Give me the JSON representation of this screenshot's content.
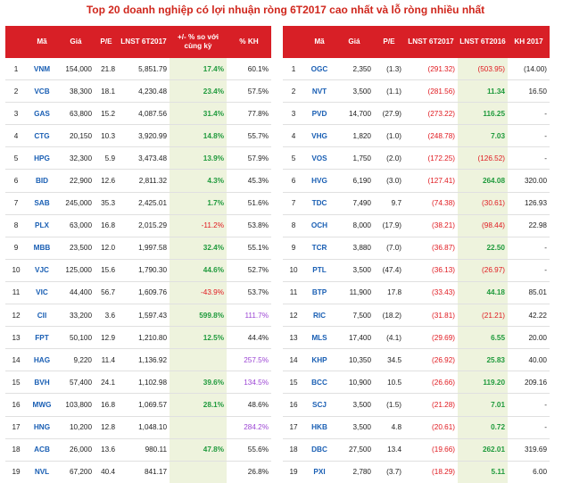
{
  "title": "Top 20 doanh nghiệp có lợi nhuận ròng 6T2017 cao nhất và lỗ ròng nhiều nhất",
  "colors": {
    "header_bg": "#d81f26",
    "ticker": "#1a5fb4",
    "negative": "#e0191f",
    "positive_growth": "#1f9a3c",
    "plan_over_100": "#9c46d4",
    "shade": "#eef3dd"
  },
  "left_table": {
    "headers": [
      "",
      "Mã",
      "Giá",
      "P/E",
      "LNST 6T2017",
      "+/- % so với cùng kỳ",
      "% KH"
    ],
    "rows": [
      {
        "no": "1",
        "ticker": "VNM",
        "price": "154,000",
        "pe": "21.8",
        "profit": "5,851.79",
        "yoy": "17.4%",
        "plan": "60.1%"
      },
      {
        "no": "2",
        "ticker": "VCB",
        "price": "38,300",
        "pe": "18.1",
        "profit": "4,230.48",
        "yoy": "23.4%",
        "plan": "57.5%"
      },
      {
        "no": "3",
        "ticker": "GAS",
        "price": "63,800",
        "pe": "15.2",
        "profit": "4,087.56",
        "yoy": "31.4%",
        "plan": "77.8%"
      },
      {
        "no": "4",
        "ticker": "CTG",
        "price": "20,150",
        "pe": "10.3",
        "profit": "3,920.99",
        "yoy": "14.8%",
        "plan": "55.7%"
      },
      {
        "no": "5",
        "ticker": "HPG",
        "price": "32,300",
        "pe": "5.9",
        "profit": "3,473.48",
        "yoy": "13.9%",
        "plan": "57.9%"
      },
      {
        "no": "6",
        "ticker": "BID",
        "price": "22,900",
        "pe": "12.6",
        "profit": "2,811.32",
        "yoy": "4.3%",
        "plan": "45.3%"
      },
      {
        "no": "7",
        "ticker": "SAB",
        "price": "245,000",
        "pe": "35.3",
        "profit": "2,425.01",
        "yoy": "1.7%",
        "plan": "51.6%"
      },
      {
        "no": "8",
        "ticker": "PLX",
        "price": "63,000",
        "pe": "16.8",
        "profit": "2,015.29",
        "yoy": "-11.2%",
        "plan": "53.8%"
      },
      {
        "no": "9",
        "ticker": "MBB",
        "price": "23,500",
        "pe": "12.0",
        "profit": "1,997.58",
        "yoy": "32.4%",
        "plan": "55.1%"
      },
      {
        "no": "10",
        "ticker": "VJC",
        "price": "125,000",
        "pe": "15.6",
        "profit": "1,790.30",
        "yoy": "44.6%",
        "plan": "52.7%"
      },
      {
        "no": "11",
        "ticker": "VIC",
        "price": "44,400",
        "pe": "56.7",
        "profit": "1,609.76",
        "yoy": "-43.9%",
        "plan": "53.7%"
      },
      {
        "no": "12",
        "ticker": "CII",
        "price": "33,200",
        "pe": "3.6",
        "profit": "1,597.43",
        "yoy": "599.8%",
        "plan": "111.7%"
      },
      {
        "no": "13",
        "ticker": "FPT",
        "price": "50,100",
        "pe": "12.9",
        "profit": "1,210.80",
        "yoy": "12.5%",
        "plan": "44.4%"
      },
      {
        "no": "14",
        "ticker": "HAG",
        "price": "9,220",
        "pe": "11.4",
        "profit": "1,136.92",
        "yoy": "",
        "plan": "257.5%"
      },
      {
        "no": "15",
        "ticker": "BVH",
        "price": "57,400",
        "pe": "24.1",
        "profit": "1,102.98",
        "yoy": "39.6%",
        "plan": "134.5%"
      },
      {
        "no": "16",
        "ticker": "MWG",
        "price": "103,800",
        "pe": "16.8",
        "profit": "1,069.57",
        "yoy": "28.1%",
        "plan": "48.6%"
      },
      {
        "no": "17",
        "ticker": "HNG",
        "price": "10,200",
        "pe": "12.8",
        "profit": "1,048.10",
        "yoy": "",
        "plan": "284.2%"
      },
      {
        "no": "18",
        "ticker": "ACB",
        "price": "26,000",
        "pe": "13.6",
        "profit": "980.11",
        "yoy": "47.8%",
        "plan": "55.6%"
      },
      {
        "no": "19",
        "ticker": "NVL",
        "price": "67,200",
        "pe": "40.4",
        "profit": "841.17",
        "yoy": "",
        "plan": "26.8%"
      }
    ]
  },
  "right_table": {
    "headers": [
      "",
      "Mã",
      "Giá",
      "P/E",
      "LNST 6T2017",
      "LNST 6T2016",
      "KH 2017"
    ],
    "rows": [
      {
        "no": "1",
        "ticker": "OGC",
        "price": "2,350",
        "pe": "(1.3)",
        "profit17": "(291.32)",
        "profit16": "(503.95)",
        "plan": "(14.00)"
      },
      {
        "no": "2",
        "ticker": "NVT",
        "price": "3,500",
        "pe": "(1.1)",
        "profit17": "(281.56)",
        "profit16": "11.34",
        "plan": "16.50"
      },
      {
        "no": "3",
        "ticker": "PVD",
        "price": "14,700",
        "pe": "(27.9)",
        "profit17": "(273.22)",
        "profit16": "116.25",
        "plan": "-"
      },
      {
        "no": "4",
        "ticker": "VHG",
        "price": "1,820",
        "pe": "(1.0)",
        "profit17": "(248.78)",
        "profit16": "7.03",
        "plan": "-"
      },
      {
        "no": "5",
        "ticker": "VOS",
        "price": "1,750",
        "pe": "(2.0)",
        "profit17": "(172.25)",
        "profit16": "(126.52)",
        "plan": "-"
      },
      {
        "no": "6",
        "ticker": "HVG",
        "price": "6,190",
        "pe": "(3.0)",
        "profit17": "(127.41)",
        "profit16": "264.08",
        "plan": "320.00"
      },
      {
        "no": "7",
        "ticker": "TDC",
        "price": "7,490",
        "pe": "9.7",
        "profit17": "(74.38)",
        "profit16": "(30.61)",
        "plan": "126.93"
      },
      {
        "no": "8",
        "ticker": "OCH",
        "price": "8,000",
        "pe": "(17.9)",
        "profit17": "(38.21)",
        "profit16": "(98.44)",
        "plan": "22.98"
      },
      {
        "no": "9",
        "ticker": "TCR",
        "price": "3,880",
        "pe": "(7.0)",
        "profit17": "(36.87)",
        "profit16": "22.50",
        "plan": "-"
      },
      {
        "no": "10",
        "ticker": "PTL",
        "price": "3,500",
        "pe": "(47.4)",
        "profit17": "(36.13)",
        "profit16": "(26.97)",
        "plan": "-"
      },
      {
        "no": "11",
        "ticker": "BTP",
        "price": "11,900",
        "pe": "17.8",
        "profit17": "(33.43)",
        "profit16": "44.18",
        "plan": "85.01"
      },
      {
        "no": "12",
        "ticker": "RIC",
        "price": "7,500",
        "pe": "(18.2)",
        "profit17": "(31.81)",
        "profit16": "(21.21)",
        "plan": "42.22"
      },
      {
        "no": "13",
        "ticker": "MLS",
        "price": "17,400",
        "pe": "(4.1)",
        "profit17": "(29.69)",
        "profit16": "6.55",
        "plan": "20.00"
      },
      {
        "no": "14",
        "ticker": "KHP",
        "price": "10,350",
        "pe": "34.5",
        "profit17": "(26.92)",
        "profit16": "25.83",
        "plan": "40.00"
      },
      {
        "no": "15",
        "ticker": "BCC",
        "price": "10,900",
        "pe": "10.5",
        "profit17": "(26.66)",
        "profit16": "119.20",
        "plan": "209.16"
      },
      {
        "no": "16",
        "ticker": "SCJ",
        "price": "3,500",
        "pe": "(1.5)",
        "profit17": "(21.28)",
        "profit16": "7.01",
        "plan": "-"
      },
      {
        "no": "17",
        "ticker": "HKB",
        "price": "3,500",
        "pe": "4.8",
        "profit17": "(20.61)",
        "profit16": "0.72",
        "plan": "-"
      },
      {
        "no": "18",
        "ticker": "DBC",
        "price": "27,500",
        "pe": "13.4",
        "profit17": "(19.66)",
        "profit16": "262.01",
        "plan": "319.69"
      },
      {
        "no": "19",
        "ticker": "PXI",
        "price": "2,780",
        "pe": "(3.7)",
        "profit17": "(18.29)",
        "profit16": "5.11",
        "plan": "6.00"
      }
    ]
  }
}
